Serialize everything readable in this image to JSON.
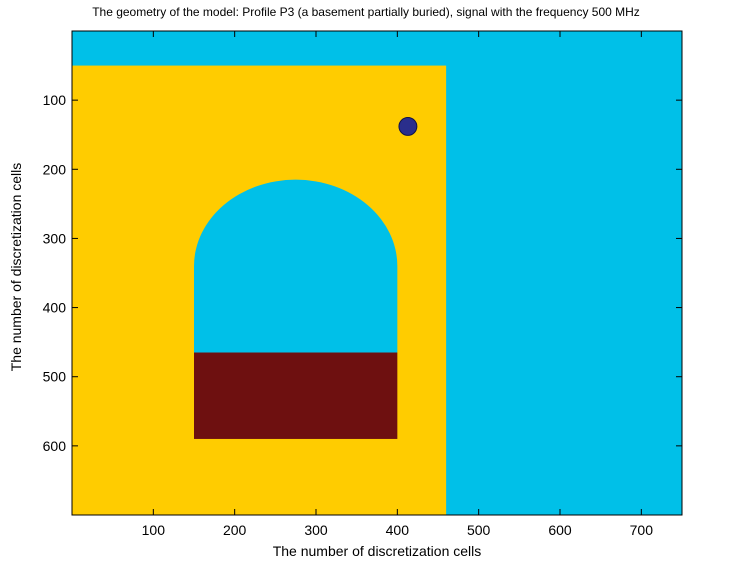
{
  "title": "The geometry of the model: Profile P3 (a basement partially buried), signal with the frequency 500 MHz",
  "xlabel": "The number of discretization cells",
  "ylabel": "The number of discretization cells",
  "colors": {
    "air": "#00c0e8",
    "soil": "#ffcc00",
    "basement_floor": "#6e1010",
    "target": "#2a2e8c",
    "axes": "#000000"
  },
  "chart_data": {
    "type": "heatmap",
    "title": "The geometry of the model: Profile P3 (a basement partially buried), signal with the frequency 500 MHz",
    "xlabel": "The number of discretization cells",
    "ylabel": "The number of discretization cells",
    "xlim": [
      0,
      750
    ],
    "ylim": [
      0,
      700
    ],
    "y_reversed": true,
    "x_ticks": [
      "100",
      "200",
      "300",
      "400",
      "500",
      "600",
      "700"
    ],
    "y_ticks": [
      "100",
      "200",
      "300",
      "400",
      "500",
      "600"
    ],
    "background_region": "air",
    "regions": [
      {
        "material": "soil",
        "shape": "rect",
        "x": [
          0,
          460
        ],
        "y": [
          50,
          700
        ]
      },
      {
        "material": "air",
        "shape": "arch",
        "x": [
          150,
          400
        ],
        "y": [
          215,
          465
        ]
      },
      {
        "material": "basement_floor",
        "shape": "rect",
        "x": [
          150,
          400
        ],
        "y": [
          465,
          590
        ]
      },
      {
        "material": "target",
        "shape": "circle",
        "cx": 413,
        "cy": 138,
        "r": 11
      }
    ]
  }
}
